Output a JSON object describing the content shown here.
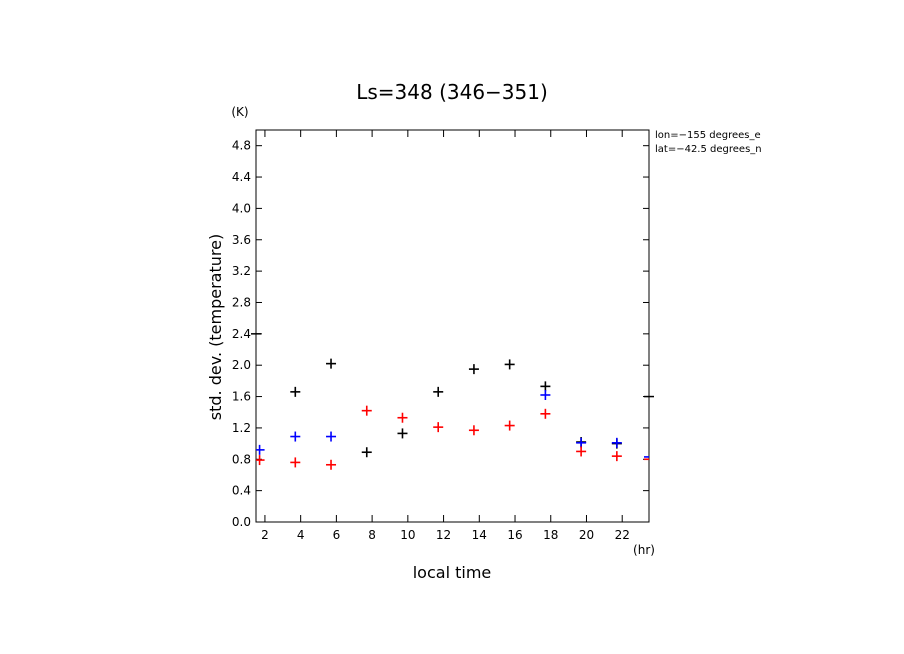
{
  "chart_data": {
    "type": "scatter",
    "title": "Ls=348 (346−351)",
    "xlabel": "local time",
    "ylabel": "std. dev. (temperature)",
    "x_unit": "(hr)",
    "y_unit": "(K)",
    "xlim": [
      1.5,
      23.5
    ],
    "ylim": [
      0.0,
      5.0
    ],
    "x_ticks": [
      2,
      4,
      6,
      8,
      10,
      12,
      14,
      16,
      18,
      20,
      22
    ],
    "y_ticks": [
      0.0,
      0.4,
      0.8,
      1.2,
      1.6,
      2.0,
      2.4,
      2.8,
      3.2,
      3.6,
      4.0,
      4.4,
      4.8
    ],
    "grid": false,
    "annotations": [
      "lon=−155 degrees_e",
      "lat=−42.5 degrees_n"
    ],
    "series": [
      {
        "color": "#000000",
        "points": [
          {
            "x": 3.7,
            "y": 1.66
          },
          {
            "x": 5.7,
            "y": 2.02
          },
          {
            "x": 7.7,
            "y": 0.89
          },
          {
            "x": 9.7,
            "y": 1.13
          },
          {
            "x": 11.7,
            "y": 1.66
          },
          {
            "x": 13.7,
            "y": 1.95
          },
          {
            "x": 15.7,
            "y": 2.01
          },
          {
            "x": 17.7,
            "y": 1.73
          },
          {
            "x": 19.7,
            "y": 1.02
          },
          {
            "x": 21.7,
            "y": 1.0
          }
        ]
      },
      {
        "color": "#0000ff",
        "points": [
          {
            "x": 1.7,
            "y": 0.92
          },
          {
            "x": 3.7,
            "y": 1.09
          },
          {
            "x": 5.7,
            "y": 1.09
          },
          {
            "x": 17.7,
            "y": 1.62
          },
          {
            "x": 19.7,
            "y": 1.01
          },
          {
            "x": 21.7,
            "y": 1.01
          },
          {
            "x": 23.7,
            "y": 0.83
          }
        ]
      },
      {
        "color": "#ff0000",
        "points": [
          {
            "x": 1.7,
            "y": 0.79
          },
          {
            "x": 3.7,
            "y": 0.76
          },
          {
            "x": 5.7,
            "y": 0.73
          },
          {
            "x": 7.7,
            "y": 1.42
          },
          {
            "x": 9.7,
            "y": 1.33
          },
          {
            "x": 11.7,
            "y": 1.21
          },
          {
            "x": 13.7,
            "y": 1.17
          },
          {
            "x": 15.7,
            "y": 1.23
          },
          {
            "x": 17.7,
            "y": 1.38
          },
          {
            "x": 19.7,
            "y": 0.9
          },
          {
            "x": 21.7,
            "y": 0.84
          },
          {
            "x": 23.7,
            "y": 0.8
          }
        ]
      }
    ],
    "edge_marks": [
      {
        "side": "left",
        "y": 2.4
      },
      {
        "side": "right",
        "y": 1.6
      }
    ]
  }
}
